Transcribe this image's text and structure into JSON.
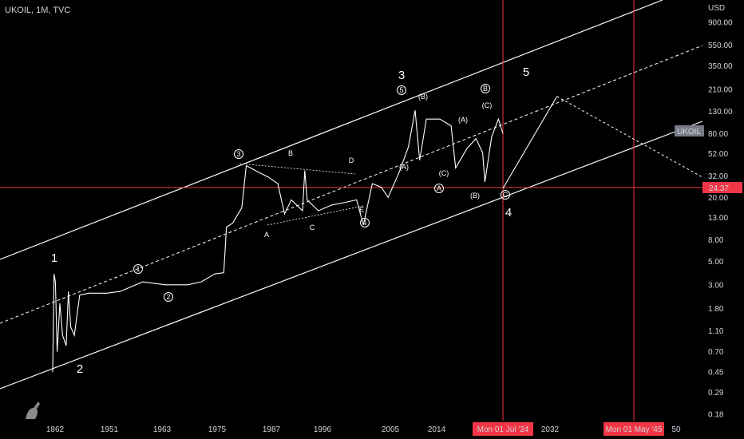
{
  "header": {
    "title": "UKOIL, 1M, TVC"
  },
  "price_axis": {
    "currency": "USD",
    "ticks": [
      "900.00",
      "550.00",
      "350.00",
      "210.00",
      "130.00",
      "80.00",
      "52.00",
      "32.00",
      "20.00",
      "13.00",
      "8.00",
      "5.00",
      "3.00",
      "1.80",
      "1.10",
      "0.70",
      "0.45",
      "0.29",
      "0.18"
    ],
    "tick_values": [
      900,
      550,
      350,
      210,
      130,
      80,
      52,
      32,
      20,
      13,
      8,
      5,
      3,
      1.8,
      1.1,
      0.7,
      0.45,
      0.29,
      0.18
    ],
    "current_price_label": "24.37",
    "symbol_badge": "UKOIL"
  },
  "time_axis": {
    "ticks": [
      "1862",
      "1951",
      "1963",
      "1975",
      "1987",
      "1996",
      "2005",
      "2014",
      "2032",
      "50"
    ],
    "crosshair_labels": [
      "Mon 01 Jul '24",
      "Mon 01 May '45"
    ]
  },
  "colors": {
    "background": "#000000",
    "price_line": "#ffffff",
    "channel": "#ffffff",
    "crosshair": "#f23645",
    "label_bg": "#f23645",
    "badge_bg": "#787b86"
  },
  "chart_data": {
    "type": "line",
    "scale": "log",
    "y_range": [
      0.18,
      900
    ],
    "grid": false,
    "wave_labels": {
      "primary": [
        "1",
        "2",
        "3",
        "4",
        "5"
      ],
      "minor_circled": [
        "1",
        "2",
        "3",
        "4",
        "5"
      ],
      "abc": [
        "A",
        "B",
        "C",
        "D",
        "E"
      ],
      "paren": [
        "(A)",
        "(B)",
        "(C)"
      ],
      "circled_letters": [
        "A",
        "B",
        "C"
      ]
    },
    "series": [
      {
        "values_key": "price"
      }
    ],
    "approx_price_path": [
      [
        0.0,
        0.45
      ],
      [
        0.003,
        3.8
      ],
      [
        0.006,
        3.2
      ],
      [
        0.01,
        0.7
      ],
      [
        0.016,
        2.0
      ],
      [
        0.022,
        1.0
      ],
      [
        0.03,
        0.8
      ],
      [
        0.035,
        2.6
      ],
      [
        0.04,
        1.2
      ],
      [
        0.048,
        1.0
      ],
      [
        0.06,
        2.4
      ],
      [
        0.08,
        2.5
      ],
      [
        0.12,
        2.5
      ],
      [
        0.15,
        2.6
      ],
      [
        0.2,
        3.2
      ],
      [
        0.25,
        3.0
      ],
      [
        0.3,
        3.0
      ],
      [
        0.33,
        3.2
      ],
      [
        0.36,
        3.8
      ],
      [
        0.38,
        3.9
      ],
      [
        0.386,
        10.5
      ],
      [
        0.4,
        11.5
      ],
      [
        0.42,
        16
      ],
      [
        0.43,
        40
      ],
      [
        0.45,
        36
      ],
      [
        0.48,
        31
      ],
      [
        0.5,
        27
      ],
      [
        0.515,
        14
      ],
      [
        0.53,
        19
      ],
      [
        0.555,
        15
      ],
      [
        0.56,
        36
      ],
      [
        0.565,
        19
      ],
      [
        0.59,
        15
      ],
      [
        0.62,
        17
      ],
      [
        0.65,
        18
      ],
      [
        0.675,
        19
      ],
      [
        0.69,
        11
      ],
      [
        0.71,
        27
      ],
      [
        0.73,
        25
      ],
      [
        0.745,
        20
      ],
      [
        0.77,
        35
      ],
      [
        0.79,
        60
      ],
      [
        0.805,
        133
      ],
      [
        0.815,
        45
      ],
      [
        0.83,
        110
      ],
      [
        0.86,
        110
      ],
      [
        0.885,
        95
      ],
      [
        0.895,
        38
      ],
      [
        0.92,
        58
      ],
      [
        0.94,
        72
      ],
      [
        0.955,
        53
      ],
      [
        0.96,
        28
      ],
      [
        0.975,
        75
      ],
      [
        0.99,
        110
      ],
      [
        1.0,
        80
      ]
    ],
    "projection": [
      [
        1.0,
        24.37
      ],
      [
        1.12,
        180
      ],
      [
        1.45,
        30
      ],
      [
        1.7,
        80
      ]
    ]
  }
}
